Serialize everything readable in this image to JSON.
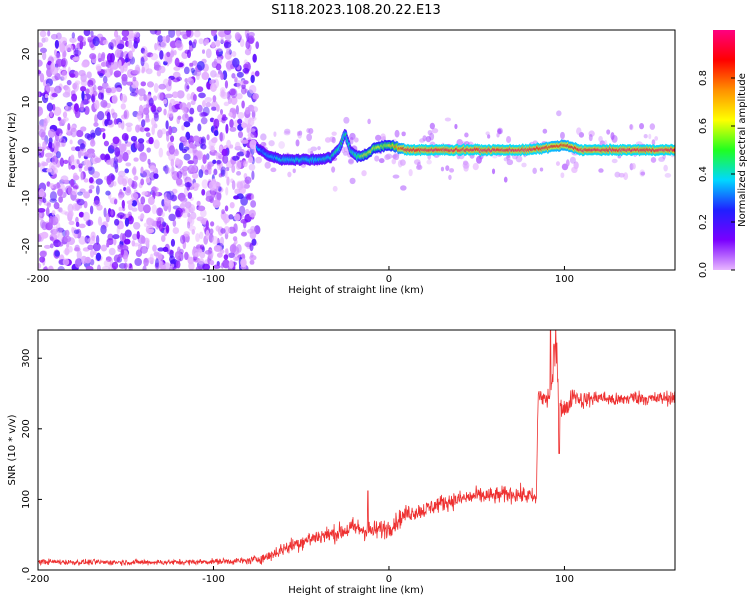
{
  "figure": {
    "title": "S118.2023.108.20.22.E13"
  },
  "chart_data": [
    {
      "type": "heatmap",
      "name": "spectrogram",
      "xlabel": "Height of straight line (km)",
      "ylabel": "Frequency (Hz)",
      "xlim": [
        -200,
        163
      ],
      "ylim": [
        -25,
        25
      ],
      "x_ticks": [
        -200,
        -100,
        0,
        100
      ],
      "x_tick_labels": [
        "-200",
        "-100",
        "0",
        "100"
      ],
      "y_ticks": [
        -20,
        -10,
        0,
        10,
        20
      ],
      "y_tick_labels": [
        "-20",
        "-10",
        "0",
        "10",
        "20"
      ],
      "grid": false,
      "colorbar": {
        "label": "Normalized spectral amplitude",
        "range": [
          0,
          1
        ],
        "ticks": [
          0.0,
          0.2,
          0.4,
          0.6,
          0.8
        ],
        "tick_labels": [
          "0.0",
          "0.2",
          "0.4",
          "0.6",
          "0.8"
        ],
        "colors": [
          "#e8b7ff",
          "#7a00ff",
          "#2020ff",
          "#00d8ff",
          "#20ff20",
          "#ffff00",
          "#ff9000",
          "#ff0000",
          "#ff0080"
        ]
      },
      "noise_region": {
        "x": [
          -200,
          -75
        ],
        "y": [
          -25,
          25
        ],
        "level": 0.15
      },
      "sparse_region": {
        "x": [
          -75,
          163
        ],
        "level": 0.08
      },
      "tone_track": {
        "x": [
          -75,
          -70,
          -62,
          -55,
          -48,
          -40,
          -33,
          -28,
          -25,
          -22,
          -18,
          -13,
          -8,
          -3,
          0,
          10,
          20,
          40,
          60,
          80,
          90,
          100,
          110,
          130,
          150,
          163
        ],
        "freq": [
          0.5,
          -1.0,
          -2.0,
          -2.0,
          -2.0,
          -2.0,
          -1.5,
          0.5,
          3.5,
          0.0,
          -1.5,
          -1.0,
          0.5,
          0.8,
          1.0,
          0.0,
          0.0,
          0.0,
          0.0,
          0.0,
          0.5,
          1.0,
          0.0,
          0.0,
          0.0,
          0.0
        ],
        "amplitude": [
          0.35,
          0.35,
          0.4,
          0.4,
          0.4,
          0.4,
          0.4,
          0.45,
          0.45,
          0.4,
          0.5,
          0.6,
          0.6,
          0.6,
          0.6,
          0.95,
          0.95,
          0.95,
          0.95,
          0.95,
          0.9,
          0.85,
          0.95,
          0.95,
          0.95,
          0.95
        ]
      }
    },
    {
      "type": "line",
      "name": "snr",
      "xlabel": "Height of straight line (km)",
      "ylabel": "SNR (10 * v/v)",
      "xlim": [
        -200,
        163
      ],
      "ylim": [
        0,
        340
      ],
      "x_ticks": [
        -200,
        -100,
        0,
        100
      ],
      "x_tick_labels": [
        "-200",
        "-100",
        "0",
        "100"
      ],
      "y_ticks": [
        0,
        100,
        200,
        300
      ],
      "y_tick_labels": [
        "0",
        "100",
        "200",
        "300"
      ],
      "grid": false,
      "color": "#ee3030",
      "series": [
        {
          "x": [
            -200,
            -180,
            -160,
            -140,
            -120,
            -100,
            -80,
            -70,
            -60,
            -50,
            -40,
            -30,
            -20,
            -10,
            0,
            10,
            20,
            30,
            40,
            50,
            60,
            70,
            80,
            84,
            85,
            87,
            90,
            93,
            95,
            97,
            99,
            101,
            105,
            110,
            120,
            130,
            140,
            150,
            163
          ],
          "values": [
            12,
            11,
            11,
            11,
            11,
            12,
            13,
            18,
            30,
            40,
            48,
            52,
            60,
            55,
            60,
            80,
            85,
            95,
            100,
            105,
            105,
            108,
            105,
            100,
            250,
            245,
            240,
            260,
            320,
            250,
            230,
            225,
            250,
            240,
            245,
            240,
            245,
            242,
            245
          ],
          "noise": [
            4,
            4,
            4,
            4,
            4,
            4,
            5,
            8,
            10,
            12,
            12,
            12,
            15,
            14,
            14,
            12,
            12,
            12,
            12,
            12,
            12,
            12,
            12,
            12,
            15,
            15,
            15,
            20,
            30,
            25,
            20,
            15,
            12,
            12,
            10,
            10,
            10,
            10,
            10
          ]
        }
      ],
      "spikes": [
        {
          "x": -12,
          "value": 112
        },
        {
          "x": 92,
          "value": 340
        },
        {
          "x": 94,
          "value": 320
        },
        {
          "x": 97,
          "value": 165
        }
      ]
    }
  ]
}
